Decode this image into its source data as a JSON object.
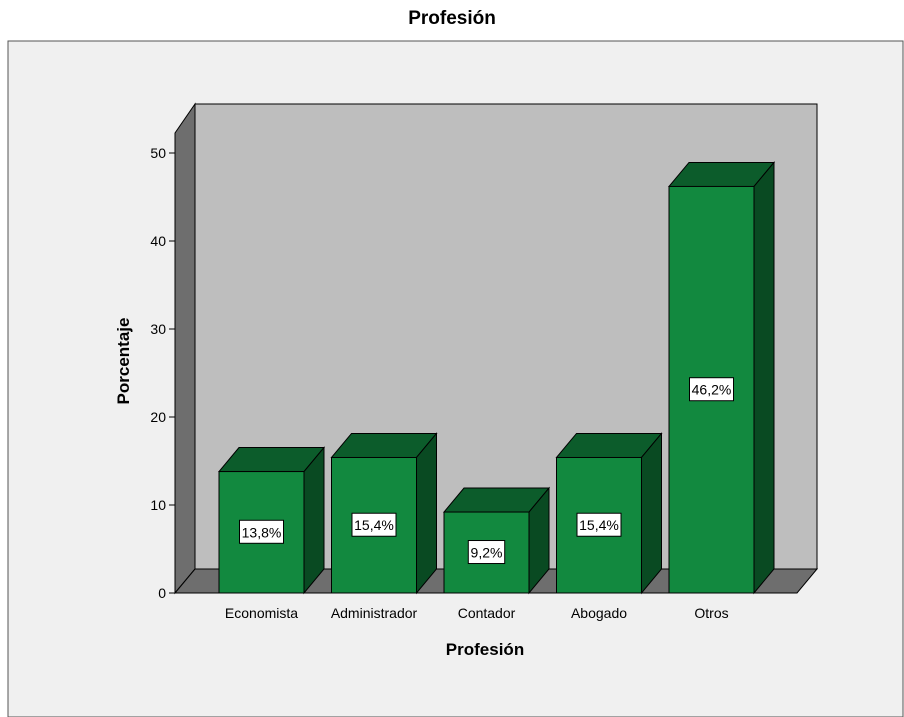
{
  "chart_data": {
    "type": "bar",
    "title": "Profesión",
    "xlabel": "Profesión",
    "ylabel": "Porcentaje",
    "categories": [
      "Economista",
      "Administrador",
      "Contador",
      "Abogado",
      "Otros"
    ],
    "values": [
      13.8,
      15.4,
      9.2,
      15.4,
      46.2
    ],
    "data_labels": [
      "13,8%",
      "15,4%",
      "9,2%",
      "15,4%",
      "46,2%"
    ],
    "ylim": [
      0,
      50
    ],
    "yticks": [
      "0",
      "10",
      "20",
      "30",
      "40",
      "50"
    ],
    "ytick_values": [
      0,
      10,
      20,
      30,
      40,
      50
    ],
    "grid": false,
    "style": "3d",
    "colors": {
      "outer_bg": "#f0f0f0",
      "back_wall": "#bebebe",
      "side_wall": "#6e6e6e",
      "floor": "#6e6e6e",
      "bar_front": "#12893f",
      "bar_top": "#0c5c2b",
      "bar_side": "#094a22",
      "label_bg": "#ffffff"
    }
  }
}
